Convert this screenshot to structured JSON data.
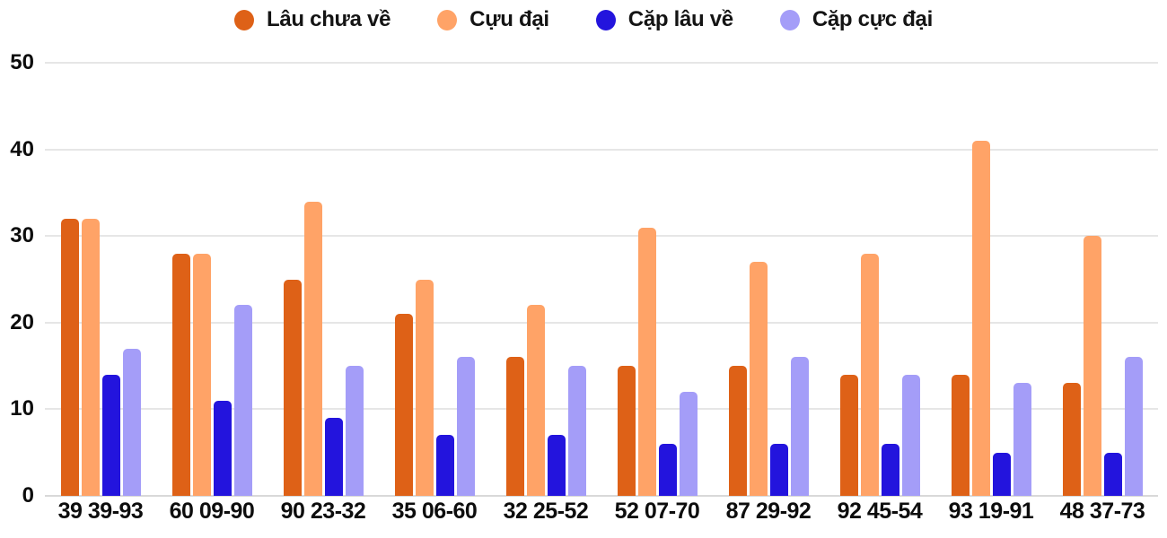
{
  "chart_data": {
    "type": "bar",
    "title": "",
    "xlabel": "",
    "ylabel": "",
    "ylim": [
      0,
      50
    ],
    "yticks": [
      0,
      10,
      20,
      30,
      40,
      50
    ],
    "grid": true,
    "legend_position": "top",
    "categories": [
      "39 39-93",
      "60 09-90",
      "90 23-32",
      "35 06-60",
      "32 25-52",
      "52 07-70",
      "87 29-92",
      "92 45-54",
      "93 19-91",
      "48 37-73"
    ],
    "series": [
      {
        "name": "Lâu chưa về",
        "color": "#de6117",
        "values": [
          32,
          28,
          25,
          21,
          16,
          15,
          15,
          14,
          14,
          13
        ]
      },
      {
        "name": "Cựu đại",
        "color": "#ffa367",
        "values": [
          32,
          28,
          34,
          25,
          22,
          31,
          27,
          28,
          41,
          30
        ]
      },
      {
        "name": "Cặp lâu về",
        "color": "#2314dd",
        "values": [
          14,
          11,
          9,
          7,
          7,
          6,
          6,
          6,
          5,
          5
        ]
      },
      {
        "name": "Cặp cực đại",
        "color": "#a49df8",
        "values": [
          17,
          22,
          15,
          16,
          15,
          12,
          16,
          14,
          13,
          16
        ]
      }
    ],
    "colors": {
      "grid": "#e6e6e6",
      "baseline": "#d9d9d9",
      "text": "#0d0d0d",
      "background": "#ffffff"
    }
  }
}
